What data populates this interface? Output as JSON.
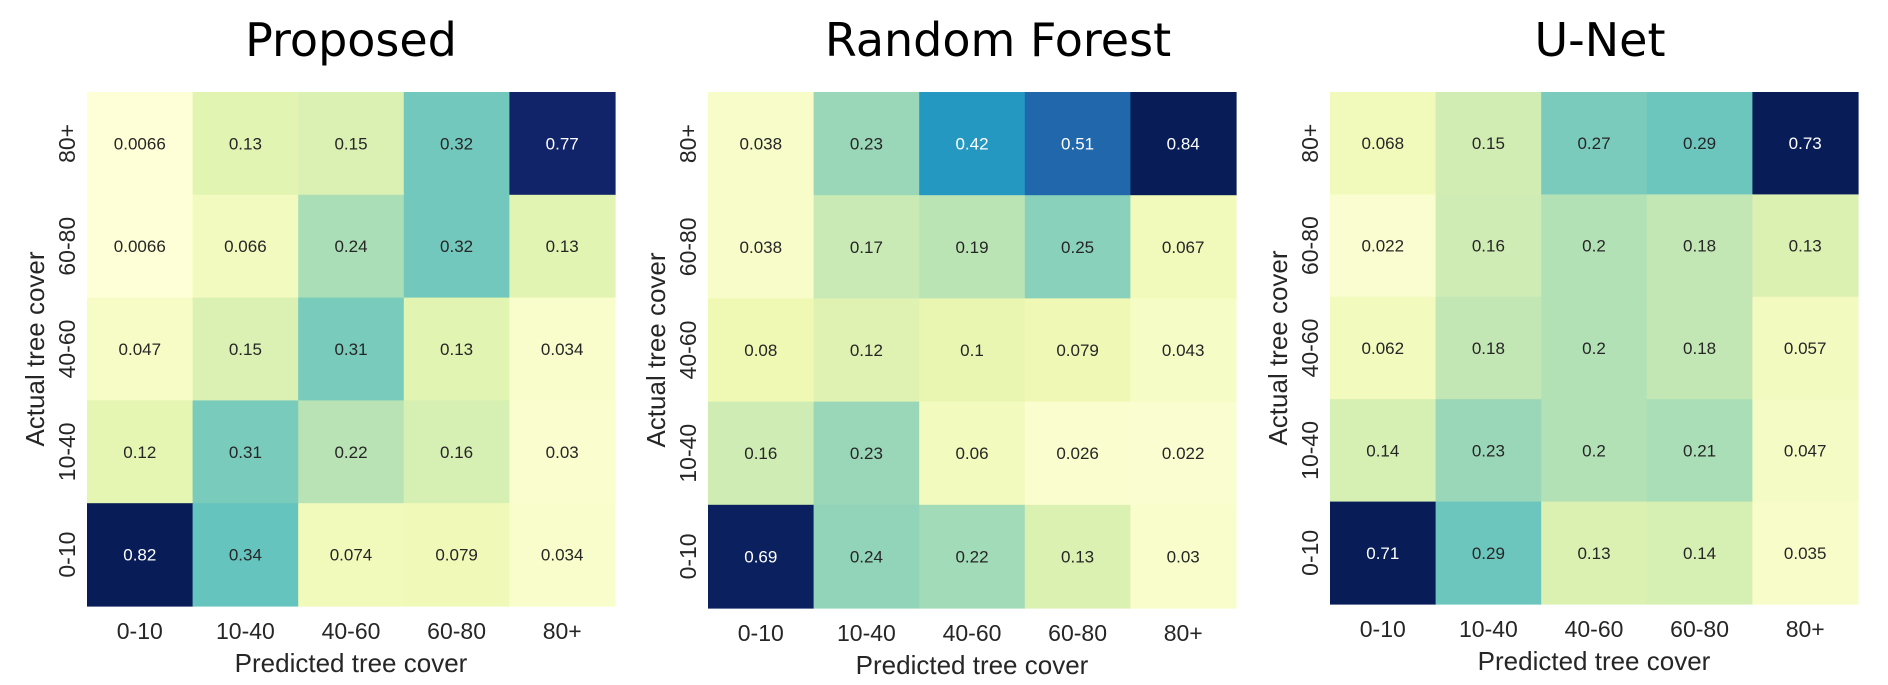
{
  "chart_data": [
    {
      "type": "heatmap",
      "title": "Proposed",
      "xlabel": "Predicted tree cover",
      "ylabel": "Actual tree cover",
      "x_categories": [
        "0-10",
        "10-40",
        "40-60",
        "60-80",
        "80+"
      ],
      "y_categories_top_to_bottom": [
        "80+",
        "60-80",
        "40-60",
        "10-40",
        "0-10"
      ],
      "values_top_to_bottom": [
        [
          0.0066,
          0.13,
          0.15,
          0.32,
          0.77
        ],
        [
          0.0066,
          0.066,
          0.24,
          0.32,
          0.13
        ],
        [
          0.047,
          0.15,
          0.31,
          0.13,
          0.034
        ],
        [
          0.12,
          0.31,
          0.22,
          0.16,
          0.03
        ],
        [
          0.82,
          0.34,
          0.074,
          0.079,
          0.034
        ]
      ],
      "colormap": "YlGnBu",
      "value_range": [
        0,
        0.8
      ]
    },
    {
      "type": "heatmap",
      "title": "Random Forest",
      "xlabel": "Predicted tree cover",
      "ylabel": "Actual tree cover",
      "x_categories": [
        "0-10",
        "10-40",
        "40-60",
        "60-80",
        "80+"
      ],
      "y_categories_top_to_bottom": [
        "80+",
        "60-80",
        "40-60",
        "10-40",
        "0-10"
      ],
      "values_top_to_bottom": [
        [
          0.038,
          0.23,
          0.42,
          0.51,
          0.84
        ],
        [
          0.038,
          0.17,
          0.19,
          0.25,
          0.067
        ],
        [
          0.08,
          0.12,
          0.1,
          0.079,
          0.043
        ],
        [
          0.16,
          0.23,
          0.06,
          0.026,
          0.022
        ],
        [
          0.69,
          0.24,
          0.22,
          0.13,
          0.03
        ]
      ],
      "colormap": "YlGnBu",
      "value_range": [
        0,
        0.7
      ]
    },
    {
      "type": "heatmap",
      "title": "U-Net",
      "xlabel": "Predicted tree cover",
      "ylabel": "Actual tree cover",
      "x_categories": [
        "0-10",
        "10-40",
        "40-60",
        "60-80",
        "80+"
      ],
      "y_categories_top_to_bottom": [
        "80+",
        "60-80",
        "40-60",
        "10-40",
        "0-10"
      ],
      "values_top_to_bottom": [
        [
          0.068,
          0.15,
          0.27,
          0.29,
          0.73
        ],
        [
          0.022,
          0.16,
          0.2,
          0.18,
          0.13
        ],
        [
          0.062,
          0.18,
          0.2,
          0.18,
          0.057
        ],
        [
          0.14,
          0.23,
          0.2,
          0.21,
          0.047
        ],
        [
          0.71,
          0.29,
          0.13,
          0.14,
          0.035
        ]
      ],
      "colormap": "YlGnBu",
      "value_range": [
        0,
        0.7
      ]
    }
  ]
}
